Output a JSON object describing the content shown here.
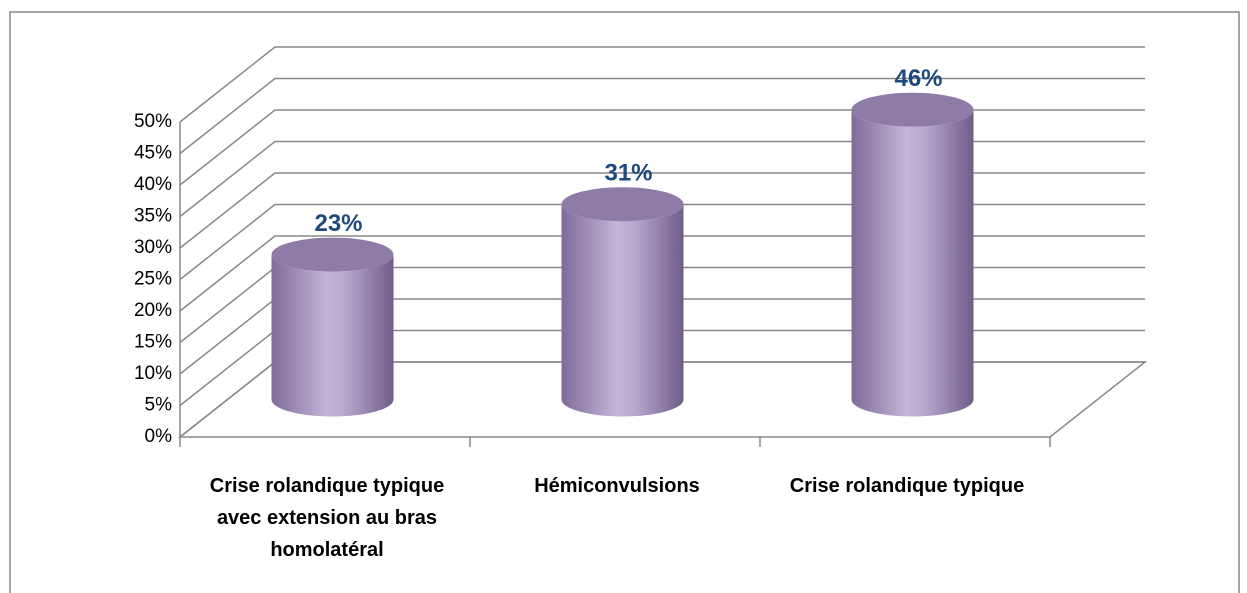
{
  "chart_data": {
    "type": "bar",
    "categories": [
      "Crise rolandique typique avec extension au bras homolatéral",
      "Hémiconvulsions",
      "Crise rolandique typique"
    ],
    "values": [
      23,
      31,
      46
    ],
    "value_labels": [
      "23%",
      "31%",
      "46%"
    ],
    "color": "#b3a2c7",
    "ylim": [
      0,
      50
    ],
    "yticks": [
      {
        "value": 0,
        "label": "0%"
      },
      {
        "value": 5,
        "label": "5%"
      },
      {
        "value": 10,
        "label": "10%"
      },
      {
        "value": 15,
        "label": "15%"
      },
      {
        "value": 20,
        "label": "20%"
      },
      {
        "value": 25,
        "label": "25%"
      },
      {
        "value": 30,
        "label": "30%"
      },
      {
        "value": 35,
        "label": "35%"
      },
      {
        "value": 40,
        "label": "40%"
      },
      {
        "value": 45,
        "label": "45%"
      },
      {
        "value": 50,
        "label": "50%"
      }
    ],
    "grid": true
  }
}
